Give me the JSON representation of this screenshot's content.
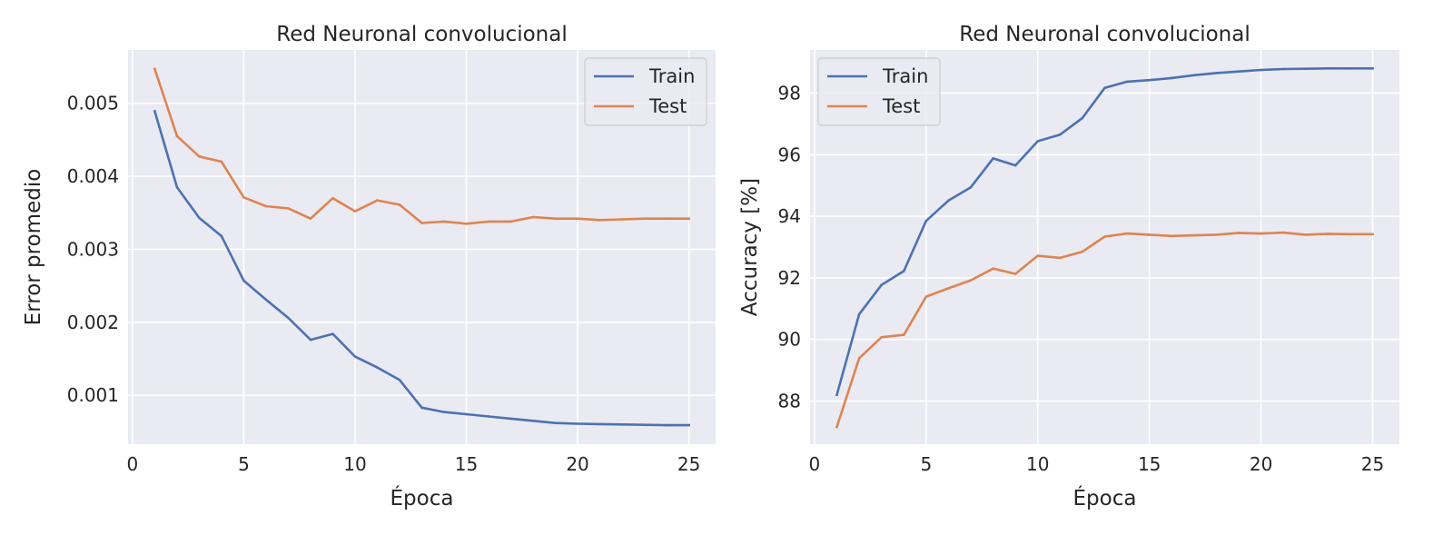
{
  "chart_data": [
    {
      "type": "line",
      "title": "Red Neuronal convolucional",
      "xlabel": "Época",
      "ylabel": "Error promedio",
      "xlim": [
        -0.2,
        26.2
      ],
      "ylim": [
        0.00033,
        0.00573
      ],
      "xticks": [
        0,
        5,
        10,
        15,
        20,
        25
      ],
      "xtick_labels": [
        "0",
        "5",
        "10",
        "15",
        "20",
        "25"
      ],
      "yticks": [
        0.001,
        0.002,
        0.003,
        0.004,
        0.005
      ],
      "ytick_labels": [
        "0.001",
        "0.002",
        "0.003",
        "0.004",
        "0.005"
      ],
      "grid": true,
      "legend_position": "upper right",
      "x": [
        1,
        2,
        3,
        4,
        5,
        6,
        7,
        8,
        9,
        10,
        11,
        12,
        13,
        14,
        15,
        16,
        17,
        18,
        19,
        20,
        21,
        22,
        23,
        24,
        25
      ],
      "series": [
        {
          "name": "Train",
          "color": "#4c72b0",
          "values": [
            0.00489,
            0.00385,
            0.00343,
            0.00318,
            0.00257,
            0.00231,
            0.00206,
            0.00176,
            0.00184,
            0.00153,
            0.00138,
            0.00121,
            0.00083,
            0.00077,
            0.00074,
            0.00071,
            0.00068,
            0.00065,
            0.00062,
            0.00061,
            0.000605,
            0.0006,
            0.000595,
            0.00059,
            0.00059
          ]
        },
        {
          "name": "Test",
          "color": "#dd8452",
          "values": [
            0.00547,
            0.00455,
            0.00427,
            0.0042,
            0.00371,
            0.00359,
            0.00356,
            0.00342,
            0.0037,
            0.00352,
            0.00367,
            0.00361,
            0.00336,
            0.00338,
            0.00335,
            0.00338,
            0.00338,
            0.00344,
            0.00342,
            0.00342,
            0.0034,
            0.00341,
            0.00342,
            0.00342,
            0.00342
          ]
        }
      ]
    },
    {
      "type": "line",
      "title": "Red Neuronal convolucional",
      "xlabel": "Época",
      "ylabel": "Accuracy [%]",
      "xlim": [
        -0.2,
        26.2
      ],
      "ylim": [
        86.6,
        99.4
      ],
      "xticks": [
        0,
        5,
        10,
        15,
        20,
        25
      ],
      "xtick_labels": [
        "0",
        "5",
        "10",
        "15",
        "20",
        "25"
      ],
      "yticks": [
        88,
        90,
        92,
        94,
        96,
        98
      ],
      "ytick_labels": [
        "88",
        "90",
        "92",
        "94",
        "96",
        "98"
      ],
      "grid": true,
      "legend_position": "upper left",
      "x": [
        1,
        2,
        3,
        4,
        5,
        6,
        7,
        8,
        9,
        10,
        11,
        12,
        13,
        14,
        15,
        16,
        17,
        18,
        19,
        20,
        21,
        22,
        23,
        24,
        25
      ],
      "series": [
        {
          "name": "Train",
          "color": "#4c72b0",
          "values": [
            88.2,
            90.82,
            91.77,
            92.22,
            93.85,
            94.51,
            94.94,
            95.88,
            95.65,
            96.44,
            96.65,
            97.19,
            98.17,
            98.37,
            98.42,
            98.49,
            98.58,
            98.65,
            98.7,
            98.75,
            98.78,
            98.79,
            98.8,
            98.8,
            98.8
          ]
        },
        {
          "name": "Test",
          "color": "#dd8452",
          "values": [
            87.16,
            89.39,
            90.07,
            90.15,
            91.39,
            91.66,
            91.92,
            92.3,
            92.13,
            92.72,
            92.65,
            92.85,
            93.34,
            93.44,
            93.4,
            93.36,
            93.38,
            93.4,
            93.46,
            93.44,
            93.47,
            93.4,
            93.43,
            93.42,
            93.42
          ]
        }
      ]
    }
  ]
}
